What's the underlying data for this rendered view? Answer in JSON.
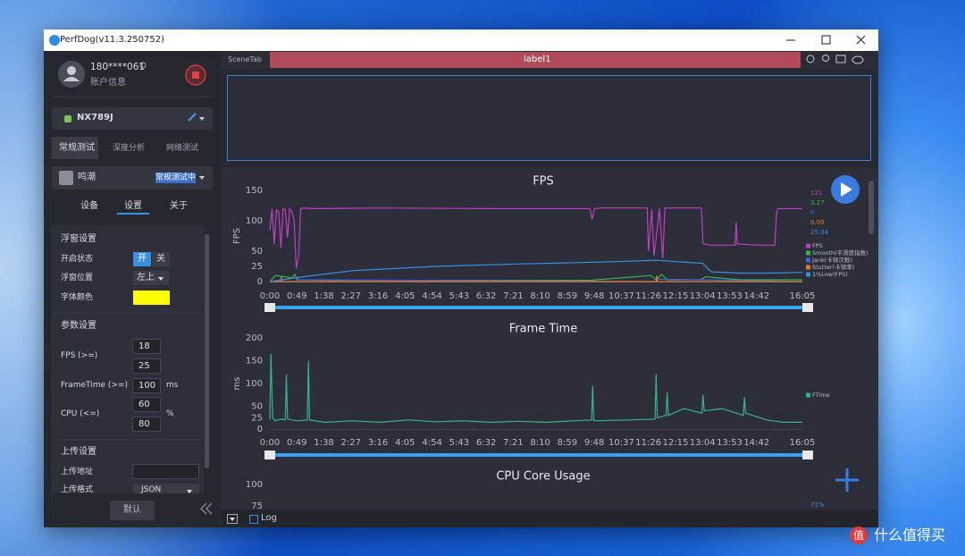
{
  "window": {
    "title": "PerfDog(v11.3.250752)"
  },
  "sidebar": {
    "user": {
      "name": "180****061",
      "account": "账户信息"
    },
    "device": "NX789J",
    "tabs": [
      "常规测试",
      "深度分析",
      "网络测试"
    ],
    "app": {
      "name": "鸣潮",
      "status": "常规测试中"
    },
    "subtabs": [
      "设备",
      "设置",
      "关于"
    ],
    "float_settings": {
      "title": "浮窗设置",
      "state_label": "开启状态",
      "on": "开",
      "off": "关",
      "position_label": "浮窗位置",
      "position": "左上",
      "color_label": "字体颜色",
      "color": "#ffff00"
    },
    "params": {
      "title": "参数设置",
      "fps_label": "FPS (>=)",
      "fps": [
        18,
        25
      ],
      "frametime_label": "FrameTime (>=)",
      "frametime": 100,
      "frametime_unit": "ms",
      "cpu_label": "CPU (<=)",
      "cpu": [
        60,
        80
      ],
      "cpu_unit": "%"
    },
    "upload": {
      "title": "上传设置",
      "address_label": "上传地址",
      "format_label": "上传格式",
      "format": "JSON"
    },
    "default_button": "默认"
  },
  "main": {
    "scene_tab": "SceneTab",
    "label": "label1",
    "log": "Log"
  },
  "chart_data": [
    {
      "type": "line",
      "title": "FPS",
      "ylabel": "FPS",
      "xlim": [
        0,
        965
      ],
      "ylim": [
        0,
        150
      ],
      "yticks": [
        0,
        25,
        50,
        100,
        150
      ],
      "xticks": [
        {
          "value": 0,
          "label": "0:00"
        },
        {
          "value": 49,
          "label": "0:49"
        },
        {
          "value": 98,
          "label": "1:38"
        },
        {
          "value": 147,
          "label": "2:27"
        },
        {
          "value": 196,
          "label": "3:16"
        },
        {
          "value": 245,
          "label": "4:05"
        },
        {
          "value": 294,
          "label": "4:54"
        },
        {
          "value": 343,
          "label": "5:43"
        },
        {
          "value": 392,
          "label": "6:32"
        },
        {
          "value": 441,
          "label": "7:21"
        },
        {
          "value": 490,
          "label": "8:10"
        },
        {
          "value": 539,
          "label": "8:59"
        },
        {
          "value": 588,
          "label": "9:48"
        },
        {
          "value": 637,
          "label": "10:37"
        },
        {
          "value": 686,
          "label": "11:26"
        },
        {
          "value": 735,
          "label": "12:15"
        },
        {
          "value": 784,
          "label": "13:04"
        },
        {
          "value": 833,
          "label": "13:53"
        },
        {
          "value": 882,
          "label": "14:42"
        },
        {
          "value": 965,
          "label": "16:05"
        }
      ],
      "series": [
        {
          "name": "FPS",
          "color": "#c23fc2",
          "current": "121",
          "x": [
            0,
            4,
            8,
            12,
            16,
            20,
            24,
            28,
            32,
            36,
            40,
            44,
            48,
            52,
            56,
            60,
            80,
            200,
            400,
            580,
            584,
            588,
            600,
            684,
            686,
            692,
            696,
            700,
            706,
            712,
            716,
            740,
            782,
            785,
            800,
            843,
            845,
            847,
            880,
            915,
            918,
            920,
            965
          ],
          "values": [
            85,
            120,
            62,
            118,
            115,
            55,
            120,
            118,
            72,
            120,
            115,
            100,
            22,
            40,
            120,
            121,
            120,
            121,
            120,
            120,
            102,
            120,
            121,
            121,
            50,
            118,
            42,
            70,
            121,
            38,
            121,
            121,
            121,
            62,
            60,
            60,
            98,
            62,
            60,
            60,
            110,
            120,
            120
          ]
        },
        {
          "name": "Smooth(平滑度指数)",
          "color": "#3cb04c",
          "current": "3.27",
          "x": [
            0,
            10,
            40,
            45,
            50,
            100,
            400,
            580,
            690,
            700,
            710,
            720,
            780,
            790,
            850,
            965
          ],
          "values": [
            0,
            10,
            6,
            12,
            3,
            2,
            2,
            2,
            10,
            3,
            12,
            3,
            3,
            8,
            3,
            3
          ]
        },
        {
          "name": "Jank(卡顿次数)",
          "color": "#4a5ee0",
          "current": "0",
          "x": [
            0,
            50,
            51,
            700,
            701,
            965
          ],
          "values": [
            0,
            0,
            3,
            0,
            4,
            0
          ]
        },
        {
          "name": "Stutter(卡顿率)",
          "color": "#e07a30",
          "current": "0.00",
          "x": [
            0,
            20,
            21,
            22,
            700,
            701,
            702,
            965
          ],
          "values": [
            0,
            0,
            8,
            0,
            0,
            10,
            0,
            0
          ]
        },
        {
          "name": "1%Low(FPS)",
          "color": "#3a8fe0",
          "current": "25.04",
          "x": [
            0,
            60,
            150,
            300,
            450,
            600,
            700,
            784,
            800,
            850,
            900,
            965
          ],
          "values": [
            0,
            8,
            18,
            25,
            29,
            32,
            35,
            30,
            16,
            14,
            14,
            15
          ]
        }
      ]
    },
    {
      "type": "line",
      "title": "Frame Time",
      "ylabel": "ms",
      "xlim": [
        0,
        965
      ],
      "ylim": [
        0,
        200
      ],
      "yticks": [
        0,
        25,
        50,
        100,
        150,
        200
      ],
      "xticks": [
        {
          "value": 0,
          "label": "0:00"
        },
        {
          "value": 49,
          "label": "0:49"
        },
        {
          "value": 98,
          "label": "1:38"
        },
        {
          "value": 147,
          "label": "2:27"
        },
        {
          "value": 196,
          "label": "3:16"
        },
        {
          "value": 245,
          "label": "4:05"
        },
        {
          "value": 294,
          "label": "4:54"
        },
        {
          "value": 343,
          "label": "5:43"
        },
        {
          "value": 392,
          "label": "6:32"
        },
        {
          "value": 441,
          "label": "7:21"
        },
        {
          "value": 490,
          "label": "8:10"
        },
        {
          "value": 539,
          "label": "8:59"
        },
        {
          "value": 588,
          "label": "9:48"
        },
        {
          "value": 637,
          "label": "10:37"
        },
        {
          "value": 686,
          "label": "11:26"
        },
        {
          "value": 735,
          "label": "12:15"
        },
        {
          "value": 784,
          "label": "13:04"
        },
        {
          "value": 833,
          "label": "13:53"
        },
        {
          "value": 882,
          "label": "14:42"
        },
        {
          "value": 965,
          "label": "16:05"
        }
      ],
      "series": [
        {
          "name": "FTime",
          "color": "#3cb08c",
          "x": [
            0,
            2,
            5,
            10,
            20,
            28,
            30,
            32,
            50,
            68,
            70,
            72,
            100,
            150,
            200,
            250,
            300,
            350,
            400,
            450,
            500,
            550,
            583,
            585,
            587,
            650,
            698,
            700,
            702,
            718,
            720,
            722,
            750,
            783,
            785,
            787,
            820,
            858,
            860,
            862,
            900,
            930,
            965
          ],
          "values": [
            20,
            165,
            25,
            18,
            22,
            20,
            120,
            22,
            18,
            20,
            150,
            20,
            15,
            18,
            15,
            20,
            16,
            18,
            15,
            17,
            15,
            18,
            20,
            95,
            18,
            20,
            22,
            120,
            25,
            30,
            80,
            30,
            45,
            35,
            75,
            40,
            45,
            30,
            70,
            35,
            20,
            15,
            15
          ]
        }
      ]
    },
    {
      "type": "line",
      "title": "CPU Core Usage",
      "ylim": [
        0,
        100
      ],
      "yticks": [
        75,
        100
      ],
      "current_label": "71%",
      "series": []
    }
  ],
  "watermark": {
    "badge": "值",
    "text": "什么值得买"
  }
}
